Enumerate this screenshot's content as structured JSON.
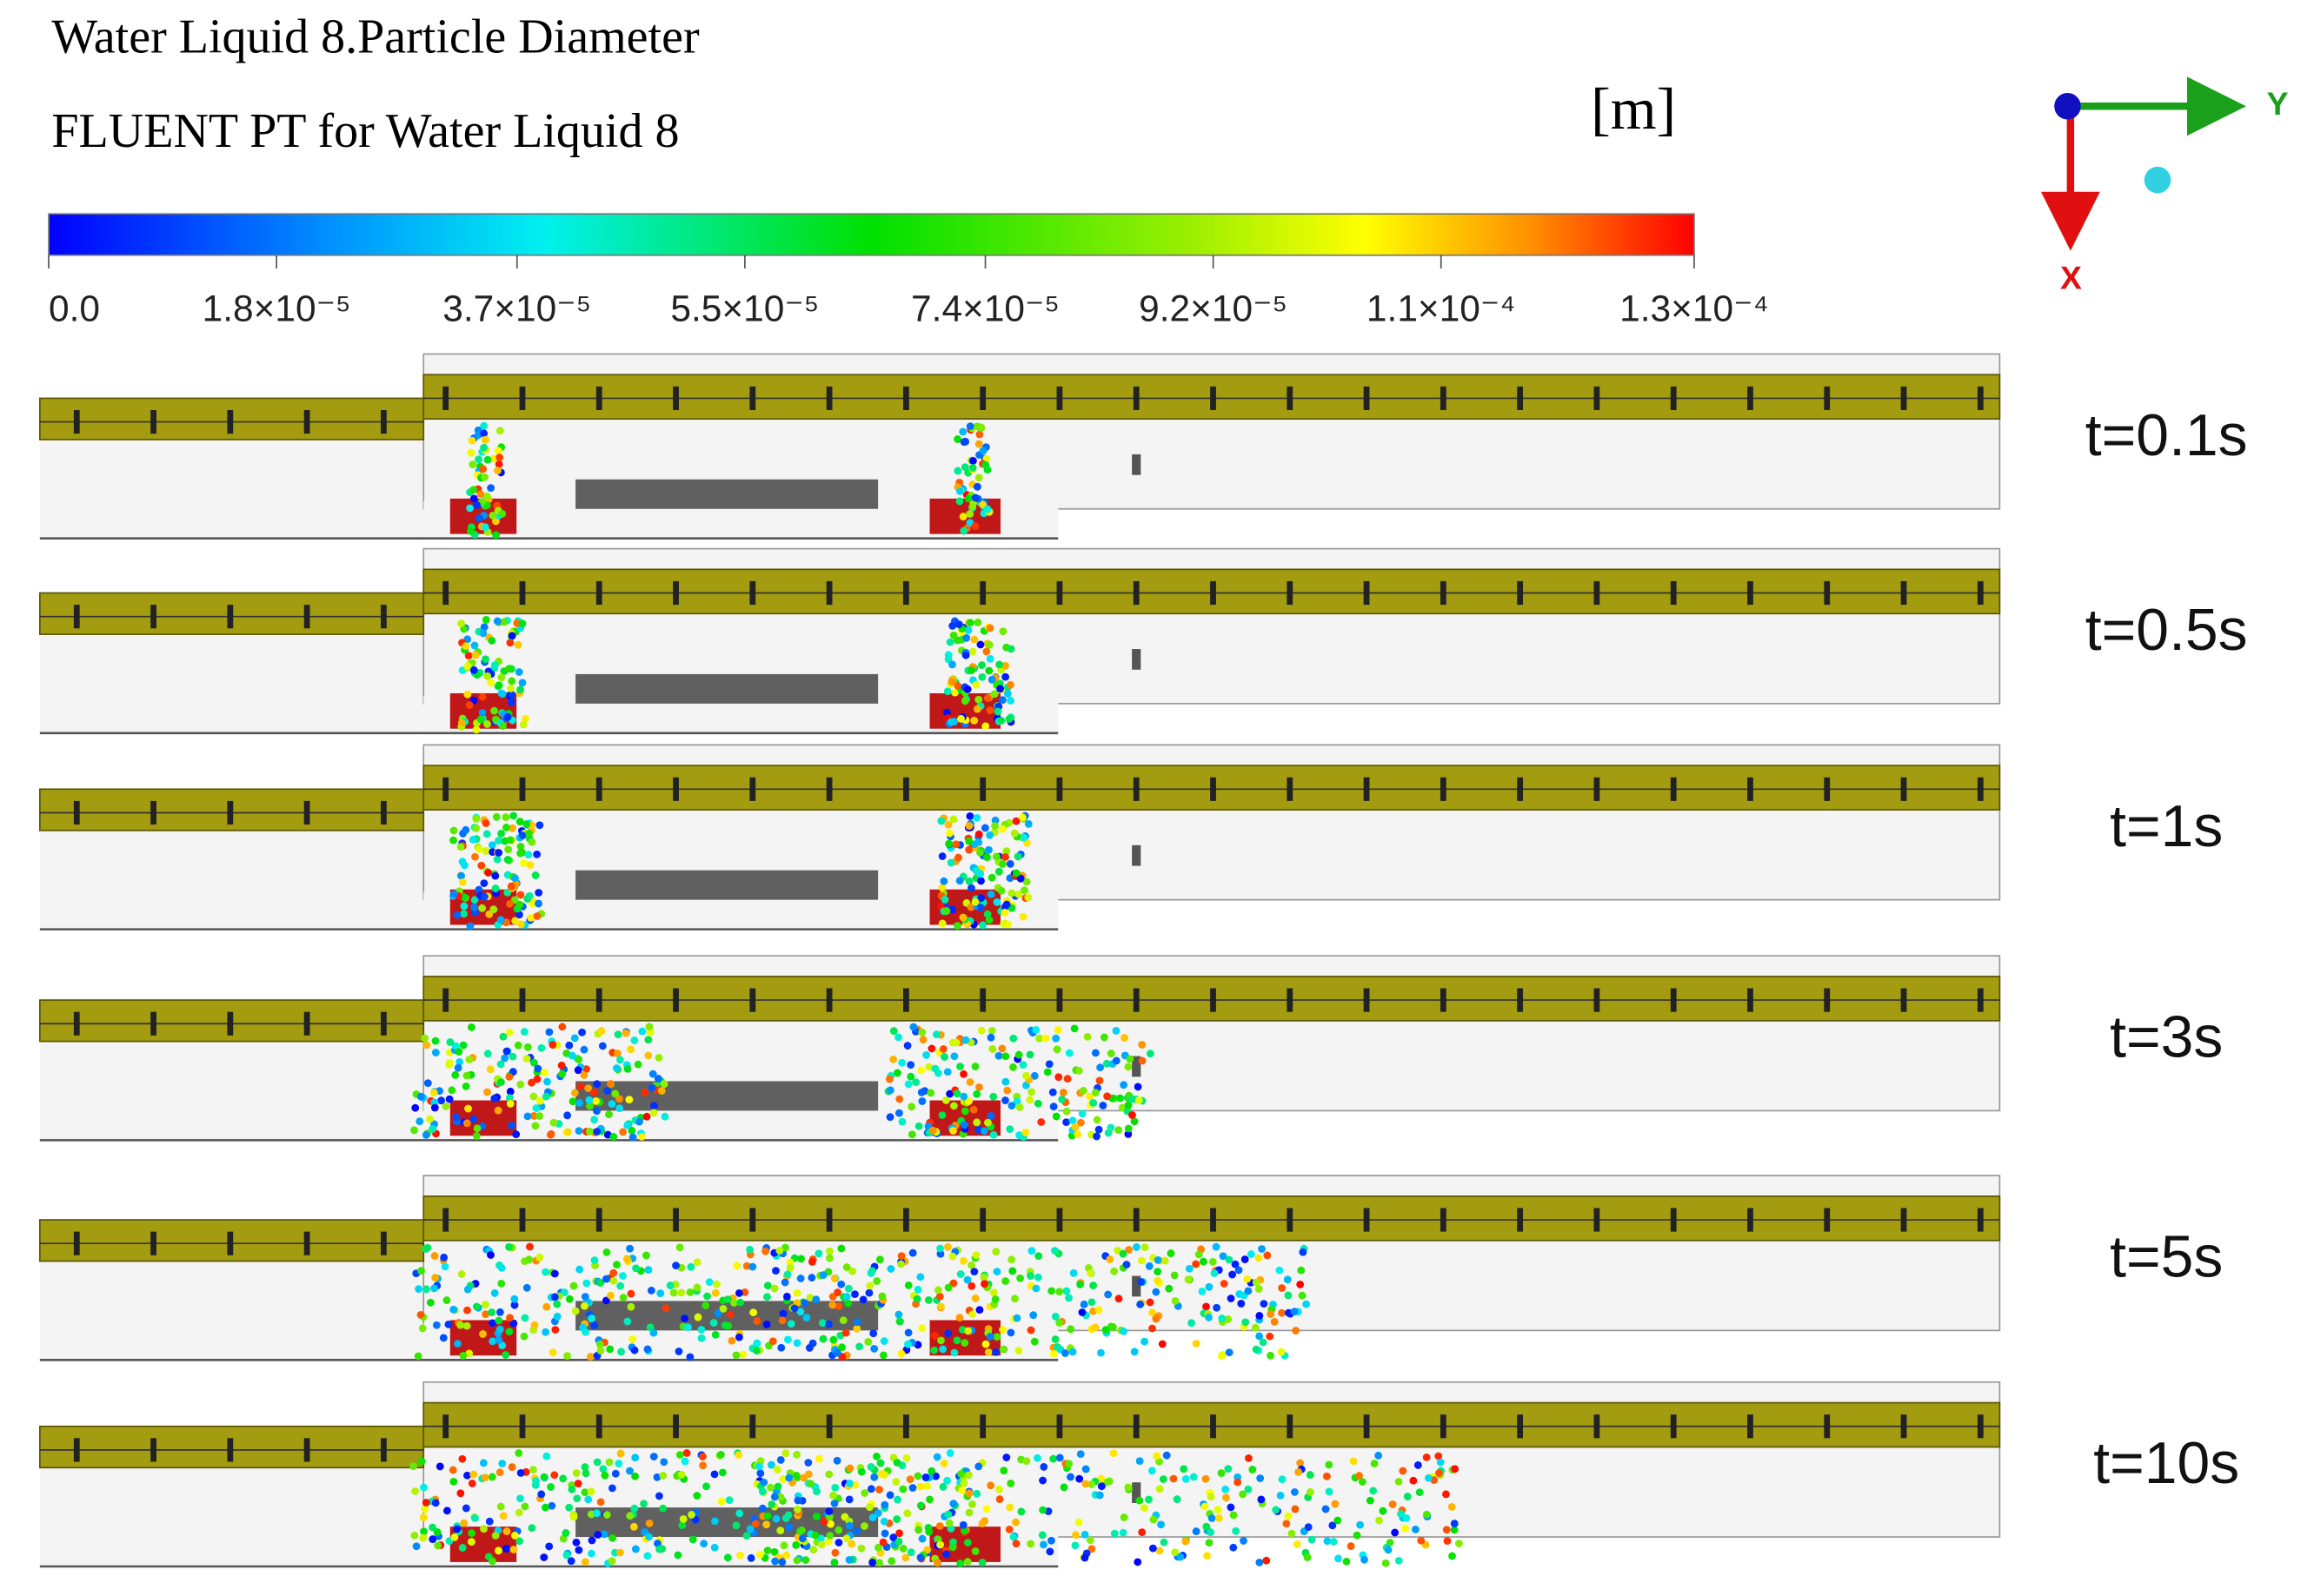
{
  "header": {
    "title": "Water Liquid 8.Particle Diameter",
    "subtitle": "FLUENT PT for Water Liquid 8",
    "unit": "[m]"
  },
  "colorbar": {
    "range": [
      0,
      0.00013
    ],
    "ticks": [
      {
        "value": 0,
        "label": "0.0"
      },
      {
        "value": 1.8e-05,
        "label": "1.8×10⁻⁵"
      },
      {
        "value": 3.7e-05,
        "label": "3.7×10⁻⁵"
      },
      {
        "value": 5.5e-05,
        "label": "5.5×10⁻⁵"
      },
      {
        "value": 7.4e-05,
        "label": "7.4×10⁻⁵"
      },
      {
        "value": 9.2e-05,
        "label": "9.2×10⁻⁵"
      },
      {
        "value": 0.00011,
        "label": "1.1×10⁻⁴"
      },
      {
        "value": 0.00013,
        "label": "1.3×10⁻⁴"
      }
    ]
  },
  "axes": {
    "y": "Y",
    "x": "X"
  },
  "panels": [
    {
      "label": "t=0.1s"
    },
    {
      "label": "t=0.5s"
    },
    {
      "label": "t=1s"
    },
    {
      "label": "t=3s"
    },
    {
      "label": "t=5s"
    },
    {
      "label": "t=10s"
    }
  ]
}
